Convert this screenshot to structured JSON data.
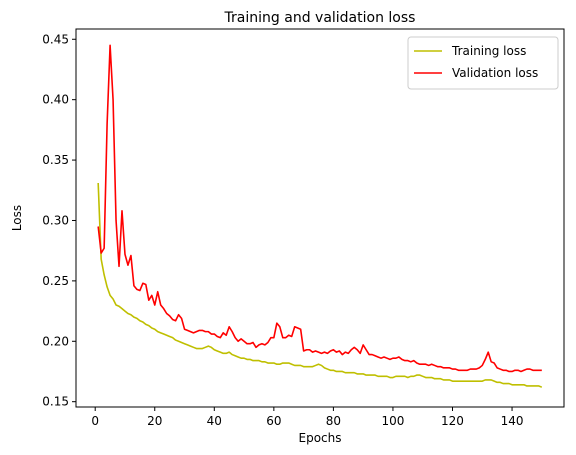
{
  "chart_data": {
    "type": "line",
    "title": "Training and validation loss",
    "xlabel": "Epochs",
    "ylabel": "Loss",
    "xlim": [
      -6.45,
      157.45
    ],
    "ylim": [
      0.1456,
      0.4585
    ],
    "xticks": [
      0,
      20,
      40,
      60,
      80,
      100,
      120,
      140
    ],
    "yticks": [
      0.15,
      0.2,
      0.25,
      0.3,
      0.35,
      0.4,
      0.45
    ],
    "grid": false,
    "legend_position": "top-right",
    "series": [
      {
        "name": "Training loss",
        "color": "#bfbf00",
        "x": [
          1,
          2,
          3,
          4,
          5,
          6,
          7,
          8,
          9,
          10,
          11,
          12,
          13,
          14,
          15,
          16,
          17,
          18,
          19,
          20,
          21,
          22,
          23,
          24,
          25,
          26,
          27,
          28,
          29,
          30,
          31,
          32,
          33,
          34,
          35,
          36,
          37,
          38,
          39,
          40,
          41,
          42,
          43,
          44,
          45,
          46,
          47,
          48,
          49,
          50,
          51,
          52,
          53,
          54,
          55,
          56,
          57,
          58,
          59,
          60,
          61,
          62,
          63,
          64,
          65,
          66,
          67,
          68,
          69,
          70,
          71,
          72,
          73,
          74,
          75,
          76,
          77,
          78,
          79,
          80,
          81,
          82,
          83,
          84,
          85,
          86,
          87,
          88,
          89,
          90,
          91,
          92,
          93,
          94,
          95,
          96,
          97,
          98,
          99,
          100,
          101,
          102,
          103,
          104,
          105,
          106,
          107,
          108,
          109,
          110,
          111,
          112,
          113,
          114,
          115,
          116,
          117,
          118,
          119,
          120,
          121,
          122,
          123,
          124,
          125,
          126,
          127,
          128,
          129,
          130,
          131,
          132,
          133,
          134,
          135,
          136,
          137,
          138,
          139,
          140,
          141,
          142,
          143,
          144,
          145,
          146,
          147,
          148,
          149,
          150
        ],
        "values": [
          0.331,
          0.268,
          0.255,
          0.245,
          0.238,
          0.235,
          0.23,
          0.229,
          0.227,
          0.225,
          0.223,
          0.222,
          0.22,
          0.219,
          0.217,
          0.216,
          0.214,
          0.213,
          0.211,
          0.21,
          0.208,
          0.207,
          0.206,
          0.205,
          0.204,
          0.203,
          0.201,
          0.2,
          0.199,
          0.198,
          0.197,
          0.196,
          0.195,
          0.194,
          0.194,
          0.194,
          0.195,
          0.196,
          0.195,
          0.193,
          0.192,
          0.191,
          0.19,
          0.19,
          0.191,
          0.189,
          0.188,
          0.187,
          0.186,
          0.186,
          0.185,
          0.185,
          0.184,
          0.184,
          0.184,
          0.183,
          0.183,
          0.182,
          0.182,
          0.182,
          0.181,
          0.181,
          0.182,
          0.182,
          0.182,
          0.181,
          0.18,
          0.18,
          0.18,
          0.179,
          0.179,
          0.179,
          0.179,
          0.18,
          0.181,
          0.18,
          0.178,
          0.177,
          0.176,
          0.176,
          0.175,
          0.175,
          0.175,
          0.174,
          0.174,
          0.174,
          0.174,
          0.173,
          0.173,
          0.173,
          0.172,
          0.172,
          0.172,
          0.172,
          0.171,
          0.171,
          0.171,
          0.171,
          0.17,
          0.17,
          0.171,
          0.171,
          0.171,
          0.171,
          0.17,
          0.171,
          0.171,
          0.172,
          0.172,
          0.171,
          0.17,
          0.17,
          0.17,
          0.169,
          0.169,
          0.169,
          0.168,
          0.168,
          0.168,
          0.167,
          0.167,
          0.167,
          0.167,
          0.167,
          0.167,
          0.167,
          0.167,
          0.167,
          0.167,
          0.167,
          0.168,
          0.168,
          0.168,
          0.167,
          0.166,
          0.166,
          0.165,
          0.165,
          0.165,
          0.164,
          0.164,
          0.164,
          0.164,
          0.164,
          0.163,
          0.163,
          0.163,
          0.163,
          0.163,
          0.162
        ]
      },
      {
        "name": "Validation loss",
        "color": "#ff0000",
        "x": [
          1,
          2,
          3,
          4,
          5,
          6,
          7,
          8,
          9,
          10,
          11,
          12,
          13,
          14,
          15,
          16,
          17,
          18,
          19,
          20,
          21,
          22,
          23,
          24,
          25,
          26,
          27,
          28,
          29,
          30,
          31,
          32,
          33,
          34,
          35,
          36,
          37,
          38,
          39,
          40,
          41,
          42,
          43,
          44,
          45,
          46,
          47,
          48,
          49,
          50,
          51,
          52,
          53,
          54,
          55,
          56,
          57,
          58,
          59,
          60,
          61,
          62,
          63,
          64,
          65,
          66,
          67,
          68,
          69,
          70,
          71,
          72,
          73,
          74,
          75,
          76,
          77,
          78,
          79,
          80,
          81,
          82,
          83,
          84,
          85,
          86,
          87,
          88,
          89,
          90,
          91,
          92,
          93,
          94,
          95,
          96,
          97,
          98,
          99,
          100,
          101,
          102,
          103,
          104,
          105,
          106,
          107,
          108,
          109,
          110,
          111,
          112,
          113,
          114,
          115,
          116,
          117,
          118,
          119,
          120,
          121,
          122,
          123,
          124,
          125,
          126,
          127,
          128,
          129,
          130,
          131,
          132,
          133,
          134,
          135,
          136,
          137,
          138,
          139,
          140,
          141,
          142,
          143,
          144,
          145,
          146,
          147,
          148,
          149,
          150
        ],
        "values": [
          0.295,
          0.273,
          0.277,
          0.38,
          0.445,
          0.4,
          0.3,
          0.262,
          0.308,
          0.272,
          0.263,
          0.271,
          0.246,
          0.243,
          0.242,
          0.248,
          0.247,
          0.234,
          0.238,
          0.23,
          0.241,
          0.23,
          0.227,
          0.223,
          0.221,
          0.218,
          0.217,
          0.222,
          0.219,
          0.21,
          0.209,
          0.208,
          0.207,
          0.208,
          0.209,
          0.209,
          0.208,
          0.208,
          0.206,
          0.206,
          0.204,
          0.203,
          0.207,
          0.205,
          0.212,
          0.208,
          0.203,
          0.2,
          0.202,
          0.2,
          0.198,
          0.198,
          0.199,
          0.195,
          0.197,
          0.198,
          0.197,
          0.199,
          0.203,
          0.203,
          0.215,
          0.212,
          0.203,
          0.203,
          0.205,
          0.204,
          0.212,
          0.211,
          0.21,
          0.192,
          0.193,
          0.193,
          0.191,
          0.192,
          0.191,
          0.19,
          0.191,
          0.19,
          0.192,
          0.193,
          0.191,
          0.192,
          0.189,
          0.191,
          0.19,
          0.193,
          0.195,
          0.193,
          0.19,
          0.197,
          0.193,
          0.189,
          0.189,
          0.188,
          0.187,
          0.186,
          0.187,
          0.186,
          0.185,
          0.186,
          0.186,
          0.187,
          0.185,
          0.184,
          0.184,
          0.183,
          0.184,
          0.182,
          0.181,
          0.181,
          0.181,
          0.18,
          0.181,
          0.18,
          0.179,
          0.179,
          0.178,
          0.178,
          0.178,
          0.177,
          0.177,
          0.176,
          0.176,
          0.176,
          0.176,
          0.177,
          0.177,
          0.177,
          0.178,
          0.18,
          0.185,
          0.191,
          0.183,
          0.182,
          0.178,
          0.177,
          0.176,
          0.176,
          0.175,
          0.175,
          0.176,
          0.176,
          0.175,
          0.176,
          0.177,
          0.177,
          0.176,
          0.176,
          0.176,
          0.176
        ]
      }
    ]
  }
}
